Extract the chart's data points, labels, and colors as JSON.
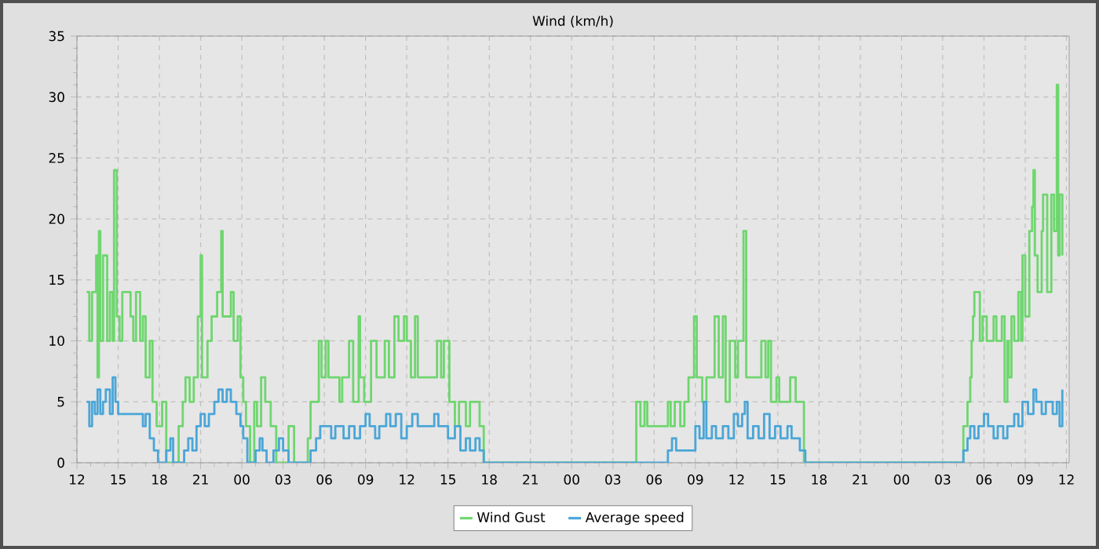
{
  "chart_data": {
    "type": "step",
    "title": "Wind (km/h)",
    "xlim": [
      12,
      84.2
    ],
    "ylim": [
      0,
      35
    ],
    "xticks": [
      12,
      15,
      18,
      21,
      {
        "value": 24,
        "label": "00"
      },
      {
        "value": 27,
        "label": "03"
      },
      {
        "value": 30,
        "label": "06"
      },
      {
        "value": 33,
        "label": "09"
      },
      {
        "value": 36,
        "label": "12"
      },
      {
        "value": 39,
        "label": "15"
      },
      {
        "value": 42,
        "label": "18"
      },
      {
        "value": 45,
        "label": "21"
      },
      {
        "value": 48,
        "label": "00"
      },
      {
        "value": 51,
        "label": "03"
      },
      {
        "value": 54,
        "label": "06"
      },
      {
        "value": 57,
        "label": "09"
      },
      {
        "value": 60,
        "label": "12"
      },
      {
        "value": 63,
        "label": "15"
      },
      {
        "value": 66,
        "label": "18"
      },
      {
        "value": 69,
        "label": "21"
      },
      {
        "value": 72,
        "label": "00"
      },
      {
        "value": 75,
        "label": "03"
      },
      {
        "value": 78,
        "label": "06"
      },
      {
        "value": 81,
        "label": "09"
      },
      {
        "value": 84,
        "label": "12"
      }
    ],
    "yticks": [
      0,
      5,
      10,
      15,
      20,
      25,
      30,
      35
    ],
    "grid": true,
    "legend": "bottom",
    "series": [
      {
        "name": "Wind Gust",
        "color": "#6fd66f",
        "x": [
          12.7,
          12.9,
          13.1,
          13.4,
          13.5,
          13.6,
          13.7,
          13.9,
          14.2,
          14.4,
          14.6,
          14.7,
          14.9,
          15.1,
          15.3,
          15.9,
          16.1,
          16.3,
          16.6,
          16.8,
          17.0,
          17.3,
          17.5,
          17.8,
          18.2,
          18.5,
          19.4,
          19.7,
          19.9,
          20.2,
          20.5,
          20.8,
          21.0,
          21.1,
          21.5,
          21.8,
          22.2,
          22.5,
          22.6,
          23.2,
          23.4,
          23.7,
          23.9,
          24.1,
          24.3,
          24.6,
          24.9,
          25.1,
          25.4,
          25.7,
          26.1,
          26.5,
          27.4,
          27.8,
          28.8,
          29.0,
          29.6,
          29.8,
          30.1,
          30.3,
          31.1,
          31.3,
          31.8,
          32.1,
          32.5,
          32.6,
          32.9,
          33.4,
          33.8,
          34.4,
          34.7,
          35.1,
          35.4,
          35.8,
          36.0,
          36.3,
          36.6,
          36.8,
          38.2,
          38.5,
          38.7,
          39.1,
          39.5,
          39.8,
          40.3,
          40.6,
          41.3,
          41.6,
          52.7,
          53.0,
          53.3,
          53.5,
          55.0,
          55.2,
          55.5,
          55.9,
          56.2,
          56.5,
          56.9,
          57.1,
          57.5,
          57.8,
          58.4,
          58.7,
          59.0,
          59.2,
          59.5,
          59.9,
          60.1,
          60.5,
          60.7,
          61.8,
          62.1,
          62.3,
          62.5,
          62.9,
          63.1,
          63.9,
          64.3,
          64.9,
          76.5,
          76.8,
          77.0,
          77.1,
          77.2,
          77.3,
          77.7,
          77.9,
          78.2,
          78.7,
          78.9,
          79.3,
          79.5,
          79.7,
          79.8,
          80.0,
          80.2,
          80.5,
          80.7,
          80.8,
          81.0,
          81.3,
          81.5,
          81.6,
          81.7,
          81.9,
          82.2,
          82.3,
          82.6,
          82.9,
          83.1,
          83.3,
          83.4,
          83.5,
          83.7
        ],
        "values": [
          14,
          10,
          14,
          17,
          7,
          19,
          10,
          17,
          10,
          14,
          10,
          24,
          12,
          10,
          14,
          12,
          10,
          14,
          10,
          12,
          7,
          10,
          5,
          3,
          5,
          0,
          3,
          5,
          7,
          5,
          7,
          12,
          17,
          7,
          10,
          12,
          14,
          19,
          12,
          14,
          10,
          12,
          7,
          5,
          3,
          0,
          5,
          3,
          7,
          5,
          3,
          0,
          3,
          0,
          2,
          5,
          10,
          7,
          10,
          7,
          5,
          7,
          10,
          5,
          12,
          7,
          5,
          10,
          7,
          10,
          7,
          12,
          10,
          12,
          10,
          7,
          12,
          7,
          10,
          7,
          10,
          5,
          3,
          5,
          3,
          5,
          3,
          0,
          5,
          3,
          5,
          3,
          5,
          3,
          5,
          3,
          5,
          7,
          12,
          7,
          5,
          7,
          12,
          7,
          12,
          5,
          10,
          7,
          10,
          19,
          7,
          10,
          7,
          10,
          5,
          7,
          5,
          7,
          5,
          0,
          3,
          5,
          7,
          10,
          12,
          14,
          10,
          12,
          10,
          12,
          10,
          12,
          5,
          10,
          7,
          12,
          10,
          14,
          10,
          17,
          12,
          19,
          21,
          24,
          17,
          14,
          19,
          22,
          14,
          22,
          19,
          31,
          17,
          22,
          17
        ]
      },
      {
        "name": "Average speed",
        "color": "#4aa6d8",
        "x": [
          12.7,
          12.9,
          13.1,
          13.3,
          13.5,
          13.7,
          13.9,
          14.1,
          14.4,
          14.6,
          14.8,
          15.0,
          16.1,
          16.8,
          17.0,
          17.3,
          17.6,
          17.9,
          18.5,
          18.8,
          19.0,
          19.8,
          20.1,
          20.4,
          20.7,
          21.0,
          21.3,
          21.6,
          22.0,
          22.3,
          22.6,
          22.9,
          23.2,
          23.6,
          23.9,
          24.1,
          24.4,
          25.0,
          25.3,
          25.5,
          25.8,
          26.3,
          26.7,
          27.0,
          27.4,
          29.0,
          29.4,
          29.7,
          30.5,
          30.8,
          31.4,
          31.8,
          32.2,
          32.6,
          33.0,
          33.3,
          33.7,
          34.0,
          34.5,
          34.8,
          35.2,
          35.6,
          36.0,
          36.4,
          36.8,
          37.5,
          38.0,
          38.3,
          39.0,
          39.5,
          39.9,
          40.3,
          40.6,
          41.0,
          41.3,
          41.6,
          55.0,
          55.3,
          55.6,
          56.5,
          57.0,
          57.3,
          57.6,
          57.8,
          58.2,
          58.5,
          59.0,
          59.4,
          59.8,
          60.1,
          60.4,
          60.6,
          60.8,
          61.2,
          61.6,
          62.0,
          62.4,
          62.8,
          63.2,
          63.7,
          64.0,
          64.6,
          65.0,
          76.5,
          76.8,
          77.0,
          77.3,
          77.6,
          78.0,
          78.3,
          78.7,
          79.0,
          79.4,
          79.7,
          80.2,
          80.5,
          80.8,
          81.2,
          81.6,
          81.8,
          82.2,
          82.5,
          83.0,
          83.3,
          83.5,
          83.7
        ],
        "values": [
          5,
          3,
          5,
          4,
          6,
          4,
          5,
          6,
          4,
          7,
          5,
          4,
          4,
          3,
          4,
          2,
          1,
          0,
          1,
          2,
          0,
          1,
          2,
          1,
          3,
          4,
          3,
          4,
          5,
          6,
          5,
          6,
          5,
          4,
          3,
          2,
          0,
          1,
          2,
          1,
          0,
          1,
          2,
          1,
          0,
          1,
          2,
          3,
          2,
          3,
          2,
          3,
          2,
          3,
          4,
          3,
          2,
          3,
          4,
          3,
          4,
          2,
          3,
          4,
          3,
          3,
          4,
          3,
          2,
          3,
          1,
          2,
          1,
          2,
          1,
          0,
          1,
          2,
          1,
          1,
          3,
          2,
          5,
          2,
          3,
          2,
          3,
          2,
          4,
          3,
          4,
          5,
          2,
          3,
          2,
          4,
          2,
          3,
          2,
          3,
          2,
          1,
          0,
          1,
          2,
          3,
          2,
          3,
          4,
          3,
          2,
          3,
          2,
          3,
          4,
          3,
          5,
          4,
          6,
          5,
          4,
          5,
          4,
          5,
          3,
          6
        ]
      }
    ]
  }
}
